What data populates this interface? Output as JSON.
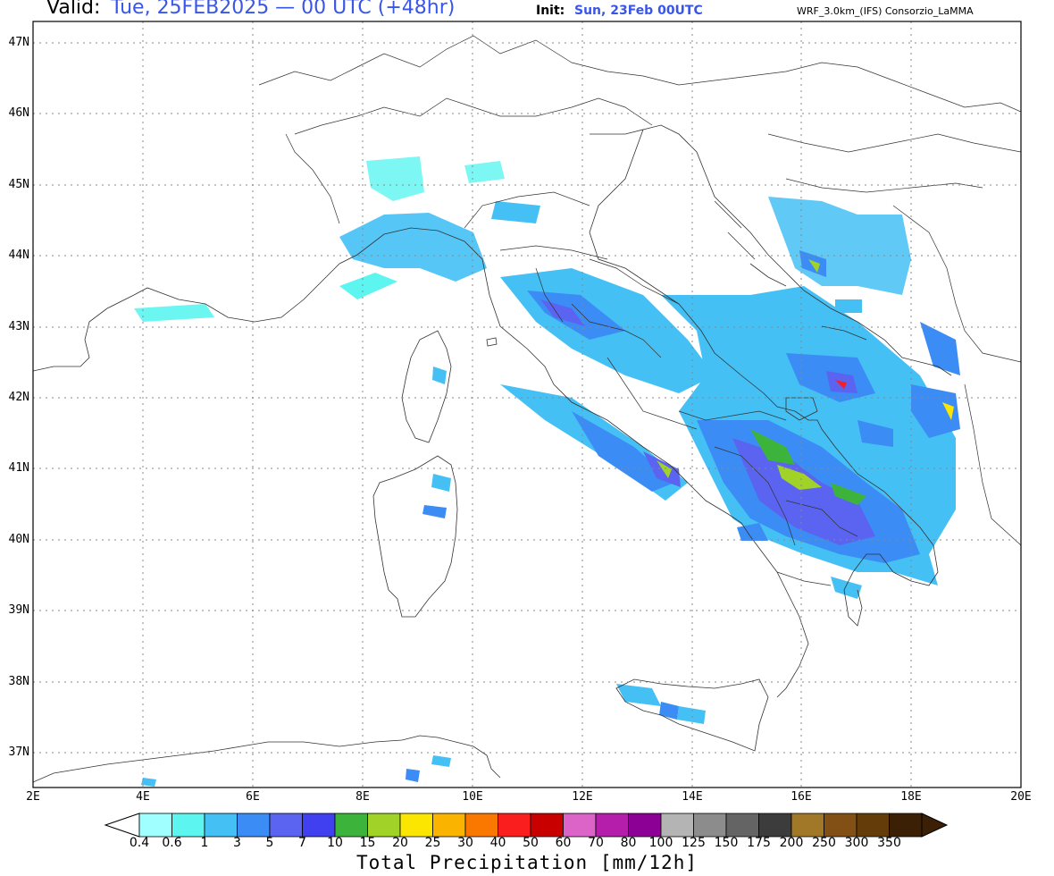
{
  "header": {
    "valid_label": "Valid:",
    "valid_value": "Tue, 25FEB2025 — 00 UTC (+48hr)",
    "init_label": "Init:",
    "init_value": "Sun, 23Feb 00UTC",
    "model_label": "WRF_3.0km_(IFS)  Consorzio_LaMMA"
  },
  "map": {
    "lon_range": [
      2,
      20
    ],
    "lat_range": [
      36.5,
      47.3
    ],
    "lat_labels": [
      "47N",
      "46N",
      "45N",
      "44N",
      "43N",
      "42N",
      "41N",
      "40N",
      "39N",
      "38N",
      "37N"
    ],
    "lon_labels": [
      "2E",
      "4E",
      "6E",
      "8E",
      "10E",
      "12E",
      "14E",
      "16E",
      "18E",
      "20E"
    ],
    "grid": true
  },
  "legend": {
    "title": "Total Precipitation [mm/12h]",
    "values": [
      "0.4",
      "0.6",
      "1",
      "3",
      "5",
      "7",
      "10",
      "15",
      "20",
      "25",
      "30",
      "40",
      "50",
      "60",
      "70",
      "80",
      "100",
      "125",
      "150",
      "175",
      "200",
      "250",
      "300",
      "350"
    ],
    "colors": [
      "#a0ffff",
      "#5cf5f0",
      "#44c0f5",
      "#3c8cf5",
      "#5a64f0",
      "#4040f0",
      "#3cb43c",
      "#a0d228",
      "#fae600",
      "#fab400",
      "#fa7800",
      "#fa1e1e",
      "#c80000",
      "#dc64c8",
      "#b41eaa",
      "#8c0096",
      "#b4b4b4",
      "#8c8c8c",
      "#646464",
      "#3c3c3c",
      "#a07828",
      "#825014",
      "#643c0a",
      "#3c2005"
    ],
    "start_color": "#ffffff",
    "end_color": "#3c2005"
  }
}
